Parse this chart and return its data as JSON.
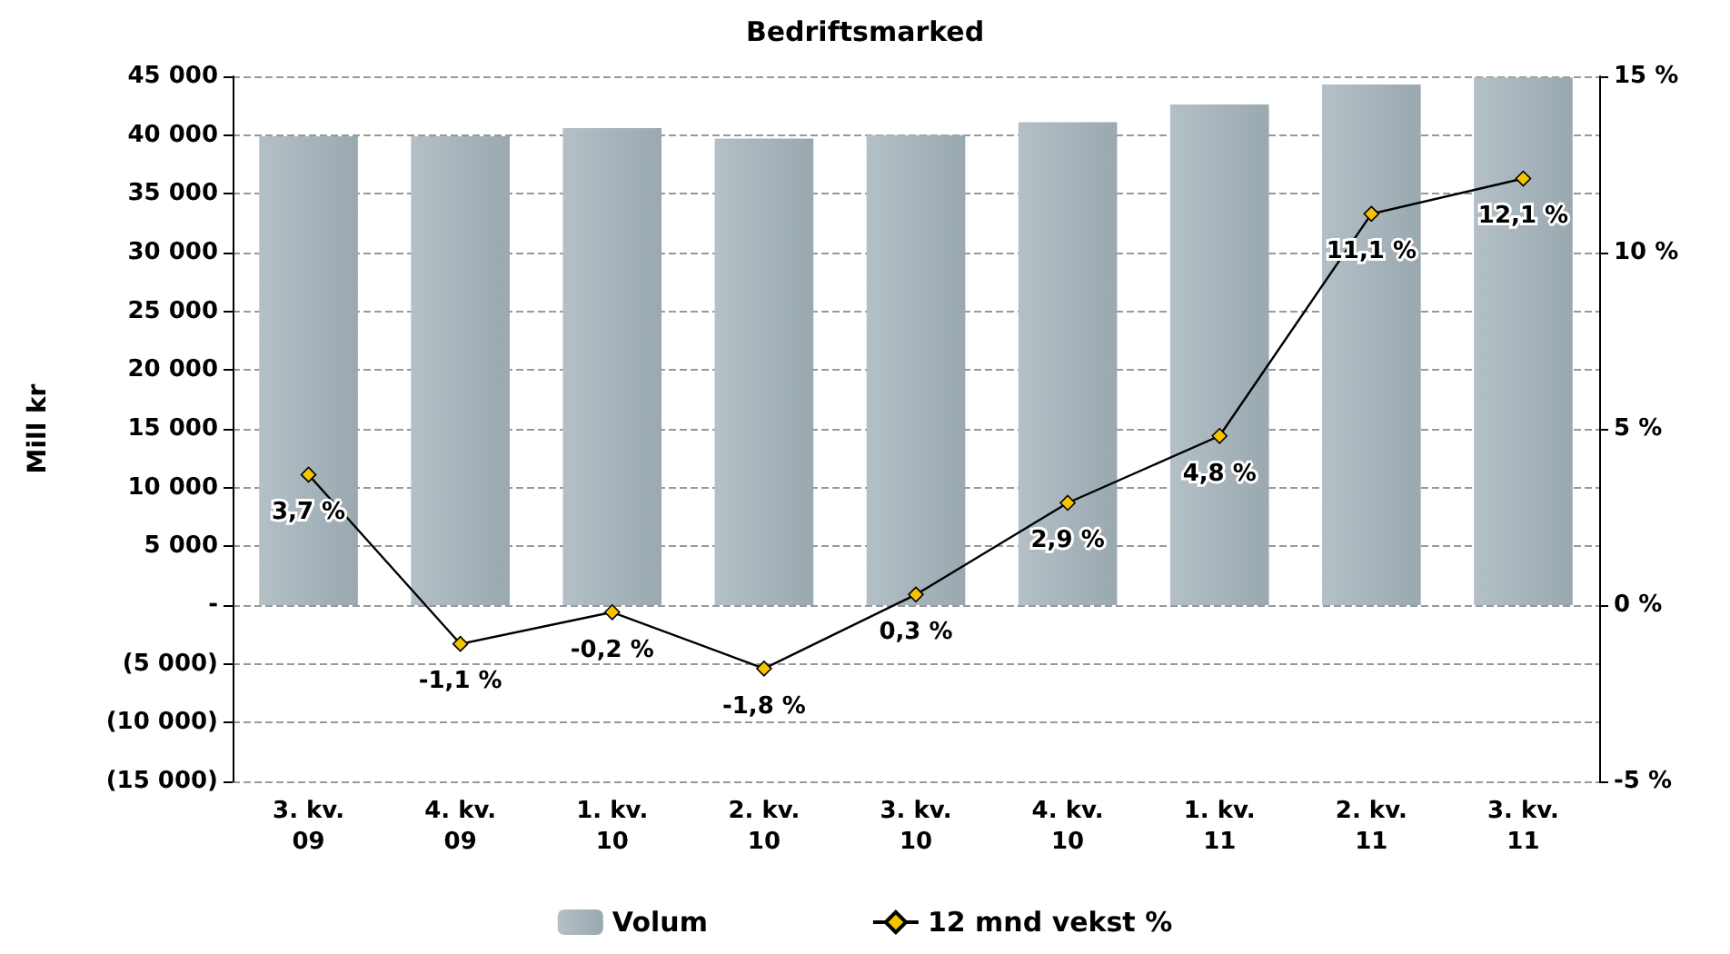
{
  "chart_data": {
    "type": "bar",
    "title": "Bedriftsmarked",
    "ylabel": "Mill kr",
    "categories": [
      "3. kv.\n09",
      "4. kv.\n09",
      "1. kv.\n10",
      "2. kv.\n10",
      "3. kv.\n10",
      "4. kv.\n10",
      "1. kv.\n11",
      "2. kv.\n11",
      "3. kv.\n11"
    ],
    "series": [
      {
        "name": "Volum",
        "color": "#9aa8b0",
        "values": [
          39900,
          39900,
          40600,
          39700,
          40000,
          41100,
          42600,
          44300,
          44900
        ]
      },
      {
        "name": "12 mnd vekst %",
        "type": "line",
        "axis": "y2",
        "color": "#000000",
        "marker": "diamond",
        "values": [
          3.7,
          -1.1,
          -0.2,
          -1.8,
          0.3,
          2.9,
          4.8,
          11.1,
          12.1
        ],
        "value_labels": [
          "3,7 %",
          "-1,1 %",
          "-0,2 %",
          "-1,8 %",
          "0,3 %",
          "2,9 %",
          "4,8 %",
          "11,1 %",
          "12,1 %"
        ]
      }
    ],
    "ylim": [
      -15000,
      45000
    ],
    "yticks": [
      {
        "value": -15000,
        "label": "(15 000)"
      },
      {
        "value": -10000,
        "label": "(10 000)"
      },
      {
        "value": -5000,
        "label": "(5 000)"
      },
      {
        "value": 0,
        "label": "-"
      },
      {
        "value": 5000,
        "label": "5 000"
      },
      {
        "value": 10000,
        "label": "10 000"
      },
      {
        "value": 15000,
        "label": "15 000"
      },
      {
        "value": 20000,
        "label": "20 000"
      },
      {
        "value": 25000,
        "label": "25 000"
      },
      {
        "value": 30000,
        "label": "30 000"
      },
      {
        "value": 35000,
        "label": "35 000"
      },
      {
        "value": 40000,
        "label": "40 000"
      },
      {
        "value": 45000,
        "label": "45 000"
      }
    ],
    "y2lim": [
      -5,
      15
    ],
    "y2ticks": [
      {
        "value": -5,
        "label": "-5 %"
      },
      {
        "value": 0,
        "label": "0 %"
      },
      {
        "value": 5,
        "label": "5 %"
      },
      {
        "value": 10,
        "label": "10 %"
      },
      {
        "value": 15,
        "label": "15 %"
      }
    ],
    "grid": "y",
    "legend": "bottom"
  }
}
